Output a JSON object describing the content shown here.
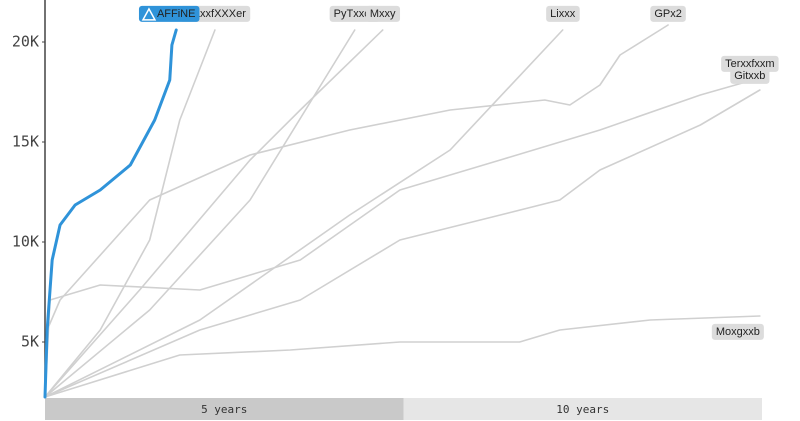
{
  "chart_data": {
    "type": "line",
    "xlim": [
      0,
      10
    ],
    "ylim": [
      2250,
      21850
    ],
    "yticks": [
      {
        "value": 5000,
        "label": "5K"
      },
      {
        "value": 10000,
        "label": "10K"
      },
      {
        "value": 15000,
        "label": "15K"
      },
      {
        "value": 20000,
        "label": "20K"
      }
    ],
    "x_band_labels": [
      "5 years",
      "10 years"
    ],
    "series": [
      {
        "name": "TraxxfXXXer",
        "color": "#d0d0d0",
        "x": [
          0,
          0.77,
          1.46,
          1.88,
          2.37
        ],
        "values": [
          2250,
          5600,
          10100,
          16100,
          20600
        ]
      },
      {
        "name": "PyTxxch",
        "color": "#d0d0d0",
        "x": [
          0,
          1.46,
          2.86,
          4.32
        ],
        "values": [
          2250,
          6600,
          12100,
          20600
        ]
      },
      {
        "name": "Mxxy",
        "color": "#d0d0d0",
        "x": [
          0,
          1.32,
          2.86,
          3.56,
          4.71
        ],
        "values": [
          2250,
          7600,
          14100,
          16600,
          20600
        ]
      },
      {
        "name": "Lixxx",
        "color": "#d0d0d0",
        "x": [
          0,
          2.16,
          4.25,
          5.65,
          7.22
        ],
        "values": [
          2250,
          6100,
          11350,
          14600,
          20600
        ]
      },
      {
        "name": "GPx2",
        "color": "#d0d0d0",
        "x": [
          0,
          0.03,
          0.21,
          1.46,
          2.86,
          4.25,
          5.65,
          6.97,
          7.32,
          7.74,
          8.02,
          8.69
        ],
        "values": [
          2250,
          5600,
          7100,
          12100,
          14350,
          15600,
          16600,
          17100,
          16850,
          17850,
          19350,
          20850
        ]
      },
      {
        "name": "Terxxfxxm",
        "color": "#d0d0d0",
        "x": [
          0,
          0.07,
          0.77,
          2.16,
          3.56,
          4.95,
          6.35,
          7.74,
          9.14,
          9.97
        ],
        "values": [
          2250,
          7100,
          7850,
          7600,
          9100,
          12600,
          14100,
          15600,
          17350,
          18200
        ]
      },
      {
        "name": "Gitxxb",
        "color": "#d0d0d0",
        "x": [
          0,
          2.16,
          3.56,
          4.95,
          6.35,
          7.18,
          7.74,
          9.14,
          9.97
        ],
        "values": [
          2250,
          5600,
          7100,
          10100,
          11350,
          12100,
          13600,
          15850,
          17600
        ]
      },
      {
        "name": "Moxgxxb",
        "color": "#d0d0d0",
        "x": [
          0,
          1.88,
          3.42,
          4.95,
          6.62,
          7.18,
          8.44,
          9.97
        ],
        "values": [
          2250,
          4350,
          4600,
          5000,
          5000,
          5600,
          6100,
          6300
        ]
      },
      {
        "name": "AFFiNE",
        "color": "#2f93d9",
        "x": [
          0,
          0.03,
          0.1,
          0.21,
          0.42,
          0.77,
          1.19,
          1.53,
          1.74,
          1.77,
          1.83
        ],
        "values": [
          2250,
          5600,
          9100,
          10850,
          11850,
          12600,
          13850,
          16100,
          18100,
          19850,
          20600
        ]
      }
    ]
  }
}
